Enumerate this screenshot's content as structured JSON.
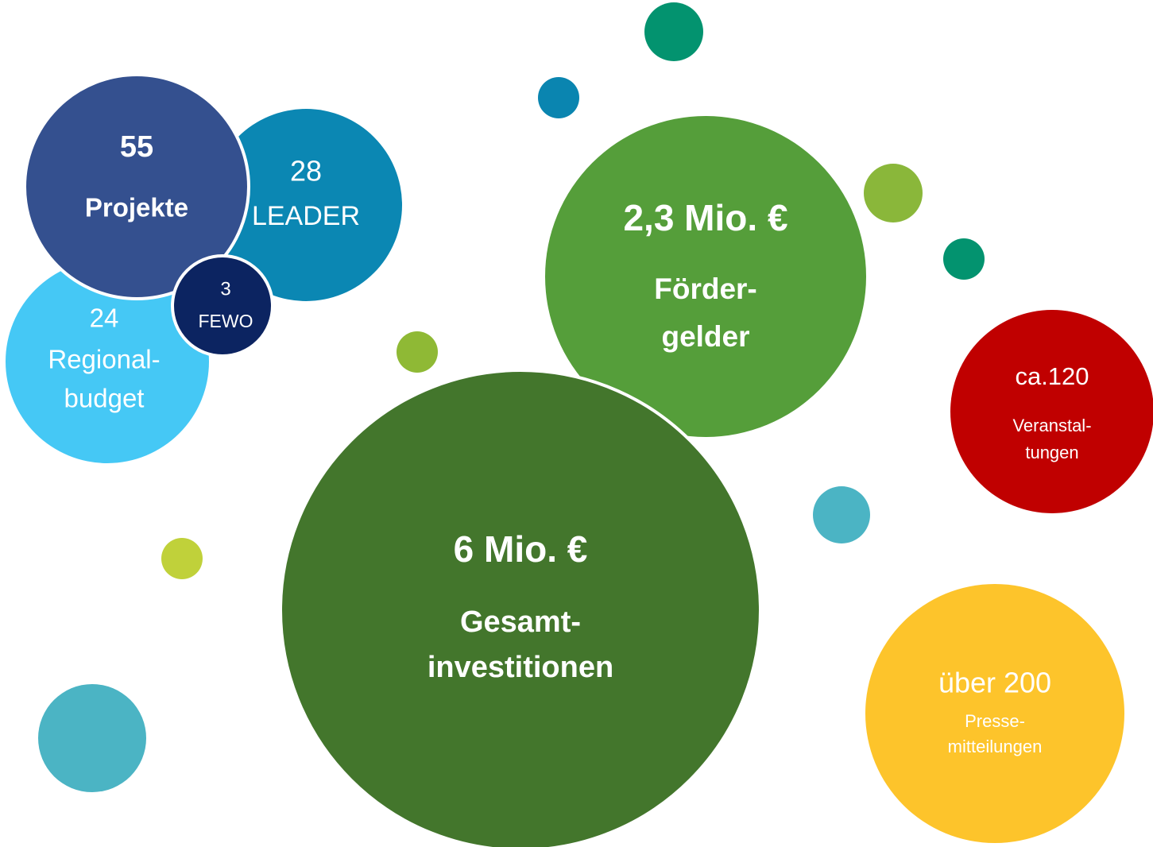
{
  "bubbles": [
    {
      "lines": [
        "28",
        "LEADER"
      ]
    },
    {
      "lines": [
        "24",
        "Regional-",
        "budget"
      ]
    },
    {
      "lines": [
        "55",
        "Projekte"
      ]
    },
    {
      "lines": [
        "3",
        "FEWO"
      ]
    },
    {
      "lines": [
        "2,3 Mio. €",
        "Förder-",
        "gelder"
      ]
    },
    {
      "lines": [
        "6 Mio. €",
        "Gesamt-",
        "investitionen"
      ]
    },
    {
      "lines": [
        "ca.120",
        "Veranstal-",
        "tungen"
      ]
    },
    {
      "lines": [
        "über 200",
        "Presse-",
        "mitteilungen"
      ]
    }
  ]
}
